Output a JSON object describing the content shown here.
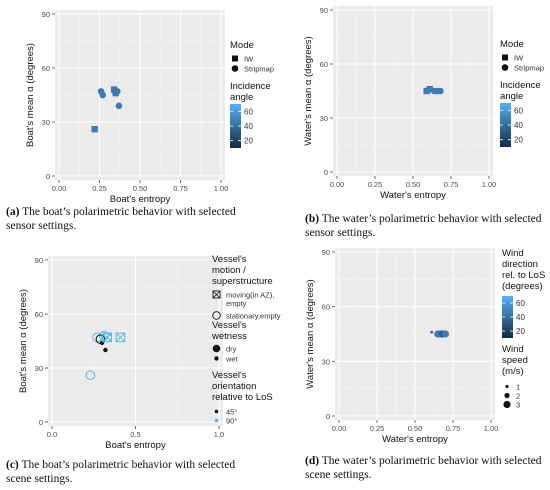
{
  "chart_data": [
    {
      "panel": "(a)",
      "type": "scatter",
      "title": "",
      "xlabel": "Boat's entropy",
      "ylabel": "Boat's mean α (degrees)",
      "xlim": [
        0,
        1
      ],
      "ylim": [
        0,
        90
      ],
      "x_ticks": [
        "0.00",
        "0.25",
        "0.50",
        "0.75",
        "1.00"
      ],
      "y_ticks": [
        "0",
        "30",
        "60",
        "90"
      ],
      "grid": true,
      "legend_position": "right",
      "legend": {
        "shape_title": "Mode",
        "shapes": [
          {
            "label": "IW",
            "shape": "square"
          },
          {
            "label": "Stripmap",
            "shape": "circle"
          }
        ],
        "color_title": [
          "Incidence",
          "angle"
        ],
        "colorbar_ticks": [
          "20",
          "40",
          "60"
        ],
        "colorbar_range": [
          10,
          70
        ]
      },
      "points": [
        {
          "x": 0.22,
          "y": 26,
          "mode": "IW",
          "color": "#3f79b2"
        },
        {
          "x": 0.26,
          "y": 47,
          "mode": "Stripmap",
          "color": "#3f79b2"
        },
        {
          "x": 0.27,
          "y": 45,
          "mode": "Stripmap",
          "color": "#3f79b2"
        },
        {
          "x": 0.34,
          "y": 48,
          "mode": "IW",
          "color": "#3f79b2"
        },
        {
          "x": 0.35,
          "y": 46,
          "mode": "IW",
          "color": "#3f79b2"
        },
        {
          "x": 0.36,
          "y": 47,
          "mode": "Stripmap",
          "color": "#3f79b2"
        },
        {
          "x": 0.37,
          "y": 39,
          "mode": "Stripmap",
          "color": "#3f79b2"
        }
      ],
      "caption_label": "(a)",
      "caption_text": "The boat’s polarimetric behavior with selected sensor settings."
    },
    {
      "panel": "(b)",
      "type": "scatter",
      "title": "",
      "xlabel": "Water's entropy",
      "ylabel": "Water's mean α (degrees)",
      "xlim": [
        0,
        1
      ],
      "ylim": [
        0,
        90
      ],
      "x_ticks": [
        "0.00",
        "0.25",
        "0.50",
        "0.75",
        "1.00"
      ],
      "y_ticks": [
        "0",
        "30",
        "60",
        "90"
      ],
      "grid": true,
      "legend_position": "right",
      "legend": {
        "shape_title": "Mode",
        "shapes": [
          {
            "label": "IW",
            "shape": "square"
          },
          {
            "label": "Stripmap",
            "shape": "circle"
          }
        ],
        "color_title": [
          "Incidence",
          "angle"
        ],
        "colorbar_ticks": [
          "20",
          "40",
          "60"
        ],
        "colorbar_range": [
          10,
          70
        ]
      },
      "points": [
        {
          "x": 0.59,
          "y": 45,
          "mode": "IW",
          "color": "#3f79b2"
        },
        {
          "x": 0.61,
          "y": 46,
          "mode": "IW",
          "color": "#3f79b2"
        },
        {
          "x": 0.64,
          "y": 45,
          "mode": "Stripmap",
          "color": "#3f79b2"
        },
        {
          "x": 0.66,
          "y": 45,
          "mode": "Stripmap",
          "color": "#3f79b2"
        },
        {
          "x": 0.68,
          "y": 45,
          "mode": "Stripmap",
          "color": "#3f79b2"
        }
      ],
      "caption_label": "(b)",
      "caption_text": "The water’s polarimetric behavior with selected sensor settings."
    },
    {
      "panel": "(c)",
      "type": "scatter",
      "title": "",
      "xlabel": "Boat's entropy",
      "ylabel": "Boat's mean α (degrees)",
      "xlim": [
        0,
        1
      ],
      "ylim": [
        0,
        90
      ],
      "x_ticks": [
        "0.0",
        "0.5",
        "1.0"
      ],
      "y_ticks": [
        "0",
        "30",
        "60",
        "90"
      ],
      "grid": true,
      "legend_position": "right",
      "legend": {
        "motion_title": [
          "Vessel's",
          "motion /",
          "superstructure"
        ],
        "motion": [
          {
            "label": [
              "moving(in AZ),",
              "empty"
            ],
            "shape": "square-x"
          },
          {
            "label": [
              "stationary,empty"
            ],
            "shape": "circle"
          }
        ],
        "wetness_title": [
          "Vessel's",
          "wetness"
        ],
        "wetness": [
          {
            "label": "dry",
            "size": "large"
          },
          {
            "label": "wet",
            "size": "small"
          }
        ],
        "orientation_title": [
          "Vessel's",
          "orientation",
          "relative to LoS"
        ],
        "orientation": [
          {
            "label": "45°",
            "color": "#111111"
          },
          {
            "label": "90°",
            "color": "#56b4e9"
          }
        ]
      },
      "points": [
        {
          "x": 0.23,
          "y": 26,
          "motion": "stationary,empty",
          "wetness": "dry",
          "orientation": "90°"
        },
        {
          "x": 0.27,
          "y": 47,
          "motion": "stationary,empty",
          "wetness": "dry",
          "orientation": "90°"
        },
        {
          "x": 0.31,
          "y": 48,
          "motion": "stationary,empty",
          "wetness": "dry",
          "orientation": "90°"
        },
        {
          "x": 0.33,
          "y": 47,
          "motion": "stationary,empty",
          "wetness": "dry",
          "orientation": "90°"
        },
        {
          "x": 0.29,
          "y": 46,
          "motion": "stationary,empty",
          "wetness": "dry",
          "orientation": "45°"
        },
        {
          "x": 0.3,
          "y": 44,
          "motion": "stationary,empty",
          "wetness": "wet",
          "orientation": "45°"
        },
        {
          "x": 0.32,
          "y": 40,
          "motion": "stationary,empty",
          "wetness": "wet",
          "orientation": "45°"
        },
        {
          "x": 0.33,
          "y": 47,
          "motion": "moving(in AZ),empty",
          "wetness": "dry",
          "orientation": "90°"
        },
        {
          "x": 0.41,
          "y": 47,
          "motion": "moving(in AZ),empty",
          "wetness": "dry",
          "orientation": "90°"
        }
      ],
      "caption_label": "(c)",
      "caption_text": "The boat’s polarimetric behavior with selected scene settings."
    },
    {
      "panel": "(d)",
      "type": "scatter",
      "title": "",
      "xlabel": "Water's entropy",
      "ylabel": "Water's mean α (degrees)",
      "xlim": [
        0,
        1
      ],
      "ylim": [
        0,
        90
      ],
      "x_ticks": [
        "0.00",
        "0.25",
        "0.50",
        "0.75",
        "1.00"
      ],
      "y_ticks": [
        "0",
        "30",
        "60",
        "90"
      ],
      "grid": true,
      "legend_position": "right",
      "legend": {
        "color_title": [
          "Wind",
          "direction",
          "rel. to LoS",
          "(degrees)"
        ],
        "colorbar_ticks": [
          "20",
          "40",
          "60"
        ],
        "colorbar_range": [
          10,
          70
        ],
        "size_title": [
          "Wind",
          "speed",
          "(m/s)"
        ],
        "sizes": [
          {
            "label": "1",
            "r": 1.6
          },
          {
            "label": "2",
            "r": 2.6
          },
          {
            "label": "3",
            "r": 3.6
          }
        ]
      },
      "points": [
        {
          "x": 0.61,
          "y": 46,
          "speed": 1,
          "color": "#3f79b2"
        },
        {
          "x": 0.65,
          "y": 45,
          "speed": 3,
          "color": "#3f79b2"
        },
        {
          "x": 0.67,
          "y": 45,
          "speed": 3,
          "color": "#3f79b2"
        },
        {
          "x": 0.68,
          "y": 45,
          "speed": 3,
          "color": "#2a5f91"
        },
        {
          "x": 0.7,
          "y": 45,
          "speed": 3,
          "color": "#3f79b2"
        }
      ],
      "caption_label": "(d)",
      "caption_text": "The water’s polarimetric behavior with selected scene settings."
    }
  ],
  "colors": {
    "panel_bg": "#ebebeb",
    "grid_major": "#ffffff",
    "grid_minor": "#f5f5f5",
    "point_blue": "#3f79b2",
    "light_blue": "#56b4e9"
  }
}
